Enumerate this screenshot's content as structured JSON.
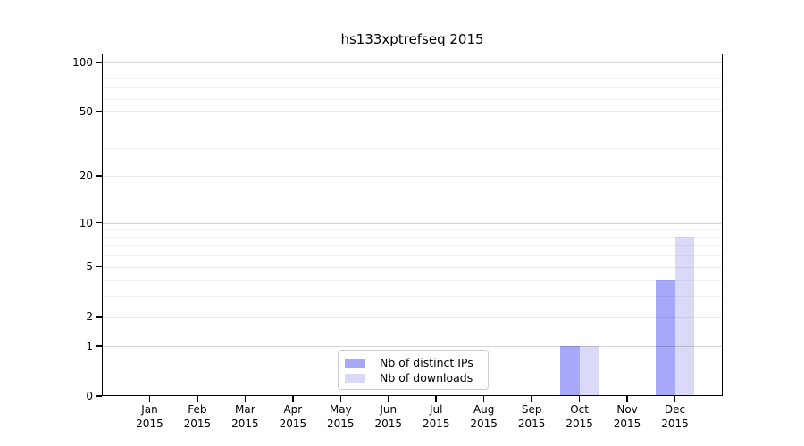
{
  "title": "hs133xptrefseq 2015",
  "chart_data": {
    "type": "bar",
    "title": "hs133xptrefseq 2015",
    "x_categories": [
      "Jan 2015",
      "Feb 2015",
      "Mar 2015",
      "Apr 2015",
      "May 2015",
      "Jun 2015",
      "Jul 2015",
      "Aug 2015",
      "Sep 2015",
      "Oct 2015",
      "Nov 2015",
      "Dec 2015"
    ],
    "series": [
      {
        "name": "Nb of distinct IPs",
        "color": "#a8a8f8",
        "values": [
          0,
          0,
          0,
          0,
          0,
          0,
          0,
          0,
          0,
          1,
          0,
          4
        ]
      },
      {
        "name": "Nb of downloads",
        "color": "#dadaf8",
        "values": [
          0,
          0,
          0,
          0,
          0,
          0,
          0,
          0,
          0,
          1,
          0,
          8
        ]
      }
    ],
    "y_axis": {
      "scale": "log1p",
      "tick_values": [
        0,
        1,
        2,
        5,
        10,
        20,
        50,
        100
      ],
      "tick_labels": [
        "0",
        "1",
        "2",
        "5",
        "10",
        "20",
        "50",
        "100"
      ],
      "minor_gridlines": [
        3,
        4,
        6,
        7,
        8,
        9,
        30,
        40,
        60,
        70,
        80,
        90
      ],
      "ylim": [
        0,
        113
      ]
    },
    "legend": {
      "position": "lower center",
      "entries": [
        "Nb of distinct IPs",
        "Nb of downloads"
      ]
    },
    "grid": true,
    "xlabel": "",
    "ylabel": ""
  }
}
